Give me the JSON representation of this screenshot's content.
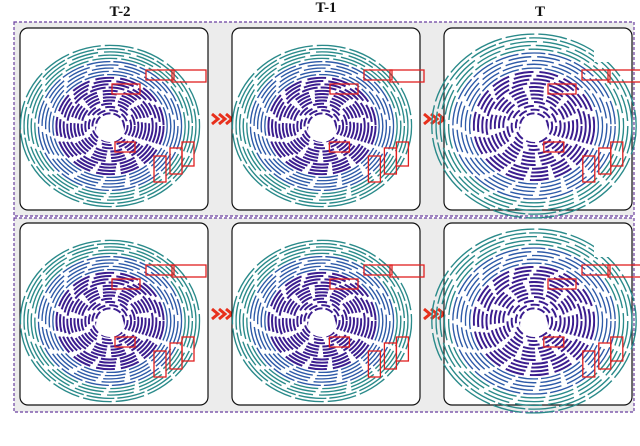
{
  "columns": [
    {
      "label": "T-2"
    },
    {
      "label": "T-1"
    },
    {
      "label": "T"
    }
  ]
}
